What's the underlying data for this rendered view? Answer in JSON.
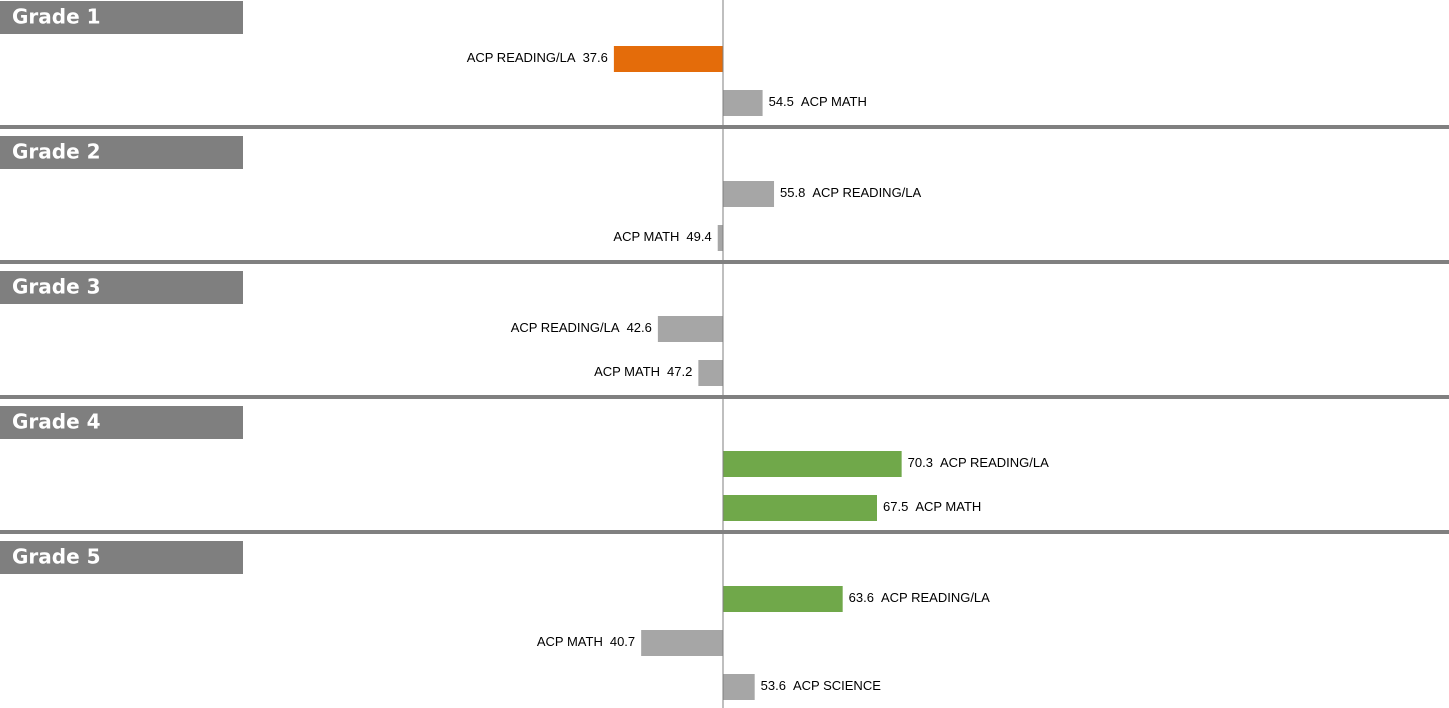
{
  "chart_data": {
    "type": "diverging-bar",
    "xlim": [
      0,
      100
    ],
    "baseline": 50,
    "groups": [
      {
        "title": "Grade 1",
        "items": [
          {
            "name": "ACP READING/LA",
            "value": 37.6,
            "color": "#e46c0a"
          },
          {
            "name": "ACP MATH",
            "value": 54.5,
            "color": "#a6a6a6"
          }
        ]
      },
      {
        "title": "Grade 2",
        "items": [
          {
            "name": "ACP READING/LA",
            "value": 55.8,
            "color": "#a6a6a6"
          },
          {
            "name": "ACP MATH",
            "value": 49.4,
            "color": "#a6a6a6"
          }
        ]
      },
      {
        "title": "Grade 3",
        "items": [
          {
            "name": "ACP READING/LA",
            "value": 42.6,
            "color": "#a6a6a6"
          },
          {
            "name": "ACP MATH",
            "value": 47.2,
            "color": "#a6a6a6"
          }
        ]
      },
      {
        "title": "Grade 4",
        "items": [
          {
            "name": "ACP READING/LA",
            "value": 70.3,
            "color": "#70a84a"
          },
          {
            "name": "ACP MATH",
            "value": 67.5,
            "color": "#70a84a"
          }
        ]
      },
      {
        "title": "Grade 5",
        "items": [
          {
            "name": "ACP READING/LA",
            "value": 63.6,
            "color": "#70a84a"
          },
          {
            "name": "ACP MATH",
            "value": 40.7,
            "color": "#a6a6a6"
          },
          {
            "name": "ACP SCIENCE",
            "value": 53.6,
            "color": "#a6a6a6"
          }
        ]
      }
    ]
  }
}
